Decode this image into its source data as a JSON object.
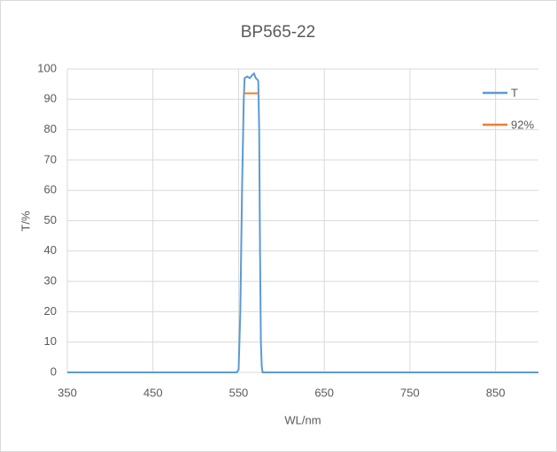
{
  "chart_data": {
    "type": "line",
    "title": "BP565-22",
    "x_label": "WL/nm",
    "y_label": "T/%",
    "xlim": [
      350,
      900
    ],
    "xticks": [
      350,
      450,
      550,
      650,
      750,
      850
    ],
    "ylim": [
      0,
      100
    ],
    "yticks": [
      0,
      10,
      20,
      30,
      40,
      50,
      60,
      70,
      80,
      90,
      100
    ],
    "grid": true,
    "legend": "right",
    "series": [
      {
        "name": "T",
        "color": "#5b9bd5",
        "x": [
          350,
          548,
          550,
          552,
          554,
          556,
          557,
          560,
          563,
          566,
          568,
          570,
          572,
          573,
          574,
          575,
          576,
          577,
          578,
          900
        ],
        "values": [
          0,
          0,
          1,
          20,
          60,
          90,
          97,
          97.5,
          97,
          98,
          98.5,
          97,
          96.5,
          96,
          80,
          40,
          10,
          2,
          0,
          0
        ]
      },
      {
        "name": "92%",
        "color": "#ed7d31",
        "x": [
          556,
          573
        ],
        "values": [
          92,
          92
        ]
      }
    ]
  }
}
